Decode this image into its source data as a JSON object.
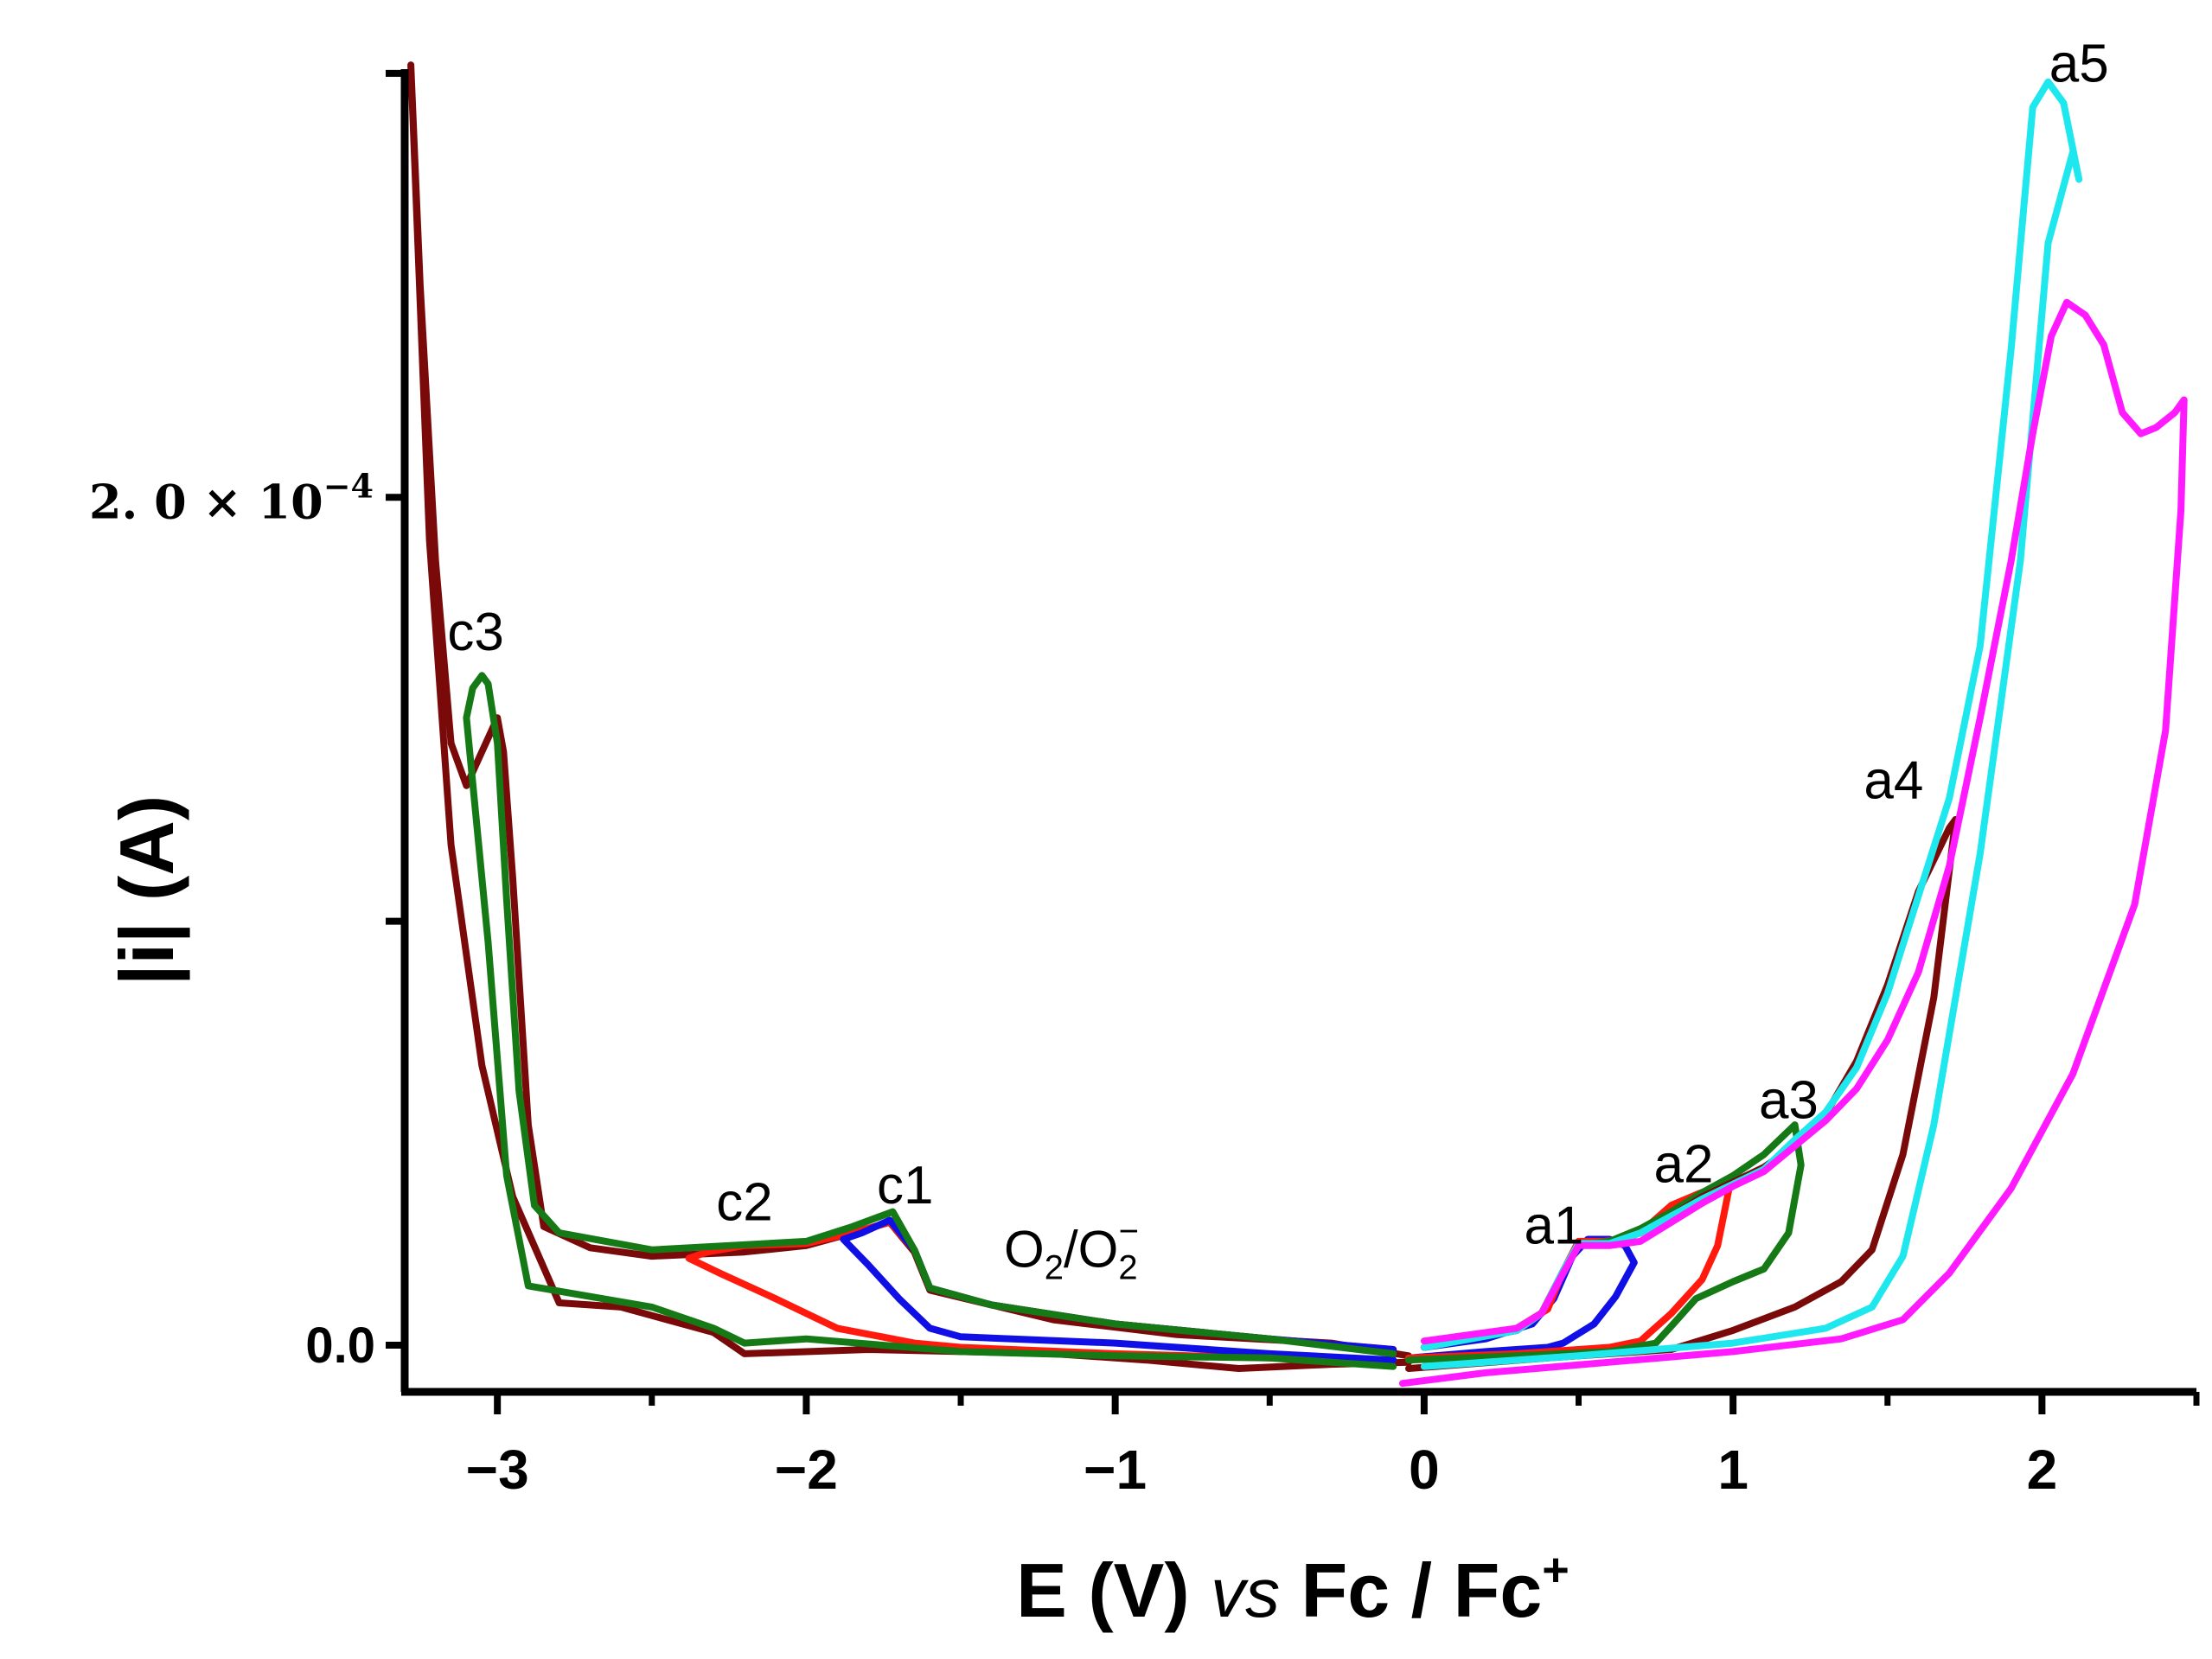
{
  "chart_data": {
    "type": "line",
    "title": "",
    "xlabel": {
      "prefix": "E (V) ",
      "italic": "vs",
      "suffix": " Fc / Fc",
      "superscript": "+"
    },
    "ylabel": "|i| (A)",
    "xlim": [
      -3.3,
      2.5
    ],
    "ylim": [
      -1.1e-05,
      0.000301
    ],
    "xticks": [
      -3,
      -2,
      -1,
      0,
      1,
      2
    ],
    "xtick_labels": [
      "−3",
      "−2",
      "−1",
      "0",
      "1",
      "2"
    ],
    "yticks": [
      0,
      0.0001,
      0.0002,
      0.0003
    ],
    "ytick_labels": {
      "zero": "0.0",
      "sci_mantissa": "2. 0 × 10",
      "sci_exponent": "−4"
    },
    "peak_labels": [
      {
        "text": "c3",
        "x": -3.07,
        "y": 0.000164
      },
      {
        "text": "c2",
        "x": -2.2,
        "y": 2.95e-05
      },
      {
        "text": "c1",
        "x": -1.68,
        "y": 3.35e-05
      },
      {
        "text": "a1",
        "x": 0.42,
        "y": 2.4e-05
      },
      {
        "text": "a2",
        "x": 0.84,
        "y": 3.85e-05
      },
      {
        "text": "a3",
        "x": 1.18,
        "y": 5.35e-05
      },
      {
        "text": "a4",
        "x": 1.52,
        "y": 0.000129
      },
      {
        "text": "a5",
        "x": 2.12,
        "y": 0.000298
      }
    ],
    "annotation": {
      "base": "O",
      "sub1": "2",
      "mid": "/O",
      "sub2": "2",
      "sup": "−",
      "x": -1.36,
      "y": 1.85e-05
    },
    "series": [
      {
        "name": "scan to -3.3 V (dark red)",
        "color": "#7a0a0a",
        "points": [
          [
            -0.05,
            -4e-06
          ],
          [
            -0.3,
            -4.5e-06
          ],
          [
            -0.6,
            -5.5e-06
          ],
          [
            -0.9,
            -3.5e-06
          ],
          [
            -1.2,
            -2e-06
          ],
          [
            -1.5,
            -1.5e-06
          ],
          [
            -1.8,
            -1e-06
          ],
          [
            -2.2,
            -2e-06
          ],
          [
            -2.3,
            3e-06
          ],
          [
            -2.6,
            9e-06
          ],
          [
            -2.8,
            1e-05
          ],
          [
            -2.95,
            3.5e-05
          ],
          [
            -3.05,
            6.6e-05
          ],
          [
            -3.15,
            0.000118
          ],
          [
            -3.22,
            0.00019
          ],
          [
            -3.28,
            0.000302
          ],
          [
            -3.25,
            0.00025
          ],
          [
            -3.2,
            0.000185
          ],
          [
            -3.15,
            0.000142
          ],
          [
            -3.1,
            0.000132
          ],
          [
            -3.05,
            0.00014
          ],
          [
            -3.0,
            0.000148
          ],
          [
            -2.98,
            0.00014
          ],
          [
            -2.95,
            0.00011
          ],
          [
            -2.9,
            5.2e-05
          ],
          [
            -2.85,
            2.8e-05
          ],
          [
            -2.7,
            2.3e-05
          ],
          [
            -2.5,
            2.1e-05
          ],
          [
            -2.2,
            2.2e-05
          ],
          [
            -2.0,
            2.35e-05
          ],
          [
            -1.85,
            2.65e-05
          ],
          [
            -1.73,
            2.9e-05
          ],
          [
            -1.65,
            2.2e-05
          ],
          [
            -1.6,
            1.3e-05
          ],
          [
            -1.4,
            9.5e-06
          ],
          [
            -1.2,
            6e-06
          ],
          [
            -0.8,
            2.5e-06
          ],
          [
            -0.3,
            5e-07
          ],
          [
            -0.05,
            -2.5e-06
          ]
        ]
      },
      {
        "name": "scan to -2.3 V (red)",
        "color": "#ff1a0d",
        "points": [
          [
            -0.1,
            -3.5e-06
          ],
          [
            -0.5,
            -3e-06
          ],
          [
            -1.0,
            -2e-06
          ],
          [
            -1.5,
            -5e-07
          ],
          [
            -1.65,
            5e-07
          ],
          [
            -1.9,
            4e-06
          ],
          [
            -2.1,
            1.1e-05
          ],
          [
            -2.28,
            1.7e-05
          ],
          [
            -2.38,
            2.05e-05
          ],
          [
            -2.32,
            2.2e-05
          ],
          [
            -2.2,
            2.35e-05
          ],
          [
            -2.0,
            2.4e-05
          ],
          [
            -1.85,
            2.65e-05
          ],
          [
            -1.73,
            2.9e-05
          ],
          [
            -1.65,
            2.25e-05
          ],
          [
            -1.6,
            1.35e-05
          ],
          [
            -1.4,
            9.5e-06
          ],
          [
            -1.0,
            5e-06
          ],
          [
            -0.5,
            1.5e-06
          ],
          [
            -0.1,
            -1e-06
          ]
        ]
      },
      {
        "name": "scan to -1.9 V (blue)",
        "color": "#1010e6",
        "points": [
          [
            -0.1,
            -3.5e-06
          ],
          [
            -0.5,
            -2e-06
          ],
          [
            -1.0,
            5e-07
          ],
          [
            -1.5,
            2e-06
          ],
          [
            -1.6,
            4e-06
          ],
          [
            -1.7,
            1.1e-05
          ],
          [
            -1.8,
            1.9e-05
          ],
          [
            -1.88,
            2.5e-05
          ],
          [
            -1.82,
            2.65e-05
          ],
          [
            -1.73,
            2.95e-05
          ],
          [
            -1.65,
            2.25e-05
          ],
          [
            -1.6,
            1.35e-05
          ],
          [
            -1.4,
            9.5e-06
          ],
          [
            -1.0,
            5e-06
          ],
          [
            -0.5,
            1.5e-06
          ],
          [
            -0.1,
            -1e-06
          ]
        ]
      },
      {
        "name": "scan to -3.1 V (green)",
        "color": "#157a15",
        "points": [
          [
            -0.1,
            -5e-06
          ],
          [
            -0.5,
            -3e-06
          ],
          [
            -1.0,
            -2.5e-06
          ],
          [
            -1.5,
            -1.5e-06
          ],
          [
            -2.0,
            1.5e-06
          ],
          [
            -2.2,
            5e-07
          ],
          [
            -2.3,
            4e-06
          ],
          [
            -2.5,
            9e-06
          ],
          [
            -2.7,
            1.15e-05
          ],
          [
            -2.9,
            1.4e-05
          ],
          [
            -2.97,
            4e-05
          ],
          [
            -3.03,
            9.5e-05
          ],
          [
            -3.1,
            0.000148
          ],
          [
            -3.08,
            0.000155
          ],
          [
            -3.05,
            0.000158
          ],
          [
            -3.03,
            0.000156
          ],
          [
            -3.0,
            0.000142
          ],
          [
            -2.97,
            0.000105
          ],
          [
            -2.93,
            6e-05
          ],
          [
            -2.88,
            3.3e-05
          ],
          [
            -2.8,
            2.65e-05
          ],
          [
            -2.5,
            2.25e-05
          ],
          [
            -2.0,
            2.45e-05
          ],
          [
            -1.85,
            2.8e-05
          ],
          [
            -1.72,
            3.15e-05
          ],
          [
            -1.65,
            2.25e-05
          ],
          [
            -1.6,
            1.35e-05
          ],
          [
            -1.4,
            9.5e-06
          ],
          [
            -1.0,
            5e-06
          ],
          [
            -0.5,
            1.5e-06
          ],
          [
            -0.1,
            -2e-06
          ]
        ]
      },
      {
        "name": "scan to 0.7 V (blue)",
        "color": "#1010e6",
        "points": [
          [
            -0.05,
            -3e-06
          ],
          [
            0.2,
            -1.5e-06
          ],
          [
            0.4,
            -5e-07
          ],
          [
            0.45,
            5e-07
          ],
          [
            0.55,
            5e-06
          ],
          [
            0.62,
            1.15e-05
          ],
          [
            0.68,
            1.95e-05
          ],
          [
            0.65,
            2.35e-05
          ],
          [
            0.6,
            2.5e-05
          ],
          [
            0.53,
            2.5e-05
          ],
          [
            0.48,
            2.1e-05
          ],
          [
            0.42,
            1.1e-05
          ],
          [
            0.35,
            5e-06
          ],
          [
            0.2,
            1.5e-06
          ],
          [
            0,
            -5e-07
          ]
        ]
      },
      {
        "name": "scan to 1.0 V (red)",
        "color": "#ff1a0d",
        "points": [
          [
            -0.05,
            -3e-06
          ],
          [
            0.3,
            -2e-06
          ],
          [
            0.6,
            -5e-07
          ],
          [
            0.7,
            1e-06
          ],
          [
            0.8,
            7.5e-06
          ],
          [
            0.9,
            1.55e-05
          ],
          [
            0.95,
            2.35e-05
          ],
          [
            0.99,
            3.8e-05
          ],
          [
            0.95,
            3.75e-05
          ],
          [
            0.88,
            3.55e-05
          ],
          [
            0.8,
            3.3e-05
          ],
          [
            0.73,
            2.85e-05
          ],
          [
            0.66,
            2.5e-05
          ],
          [
            0.58,
            2.45e-05
          ],
          [
            0.5,
            2.45e-05
          ],
          [
            0.45,
            1.75e-05
          ],
          [
            0.4,
            8.5e-06
          ],
          [
            0.3,
            4e-06
          ],
          [
            0,
            -5e-07
          ]
        ]
      },
      {
        "name": "scan to 1.2 V (green)",
        "color": "#157a15",
        "points": [
          [
            -0.05,
            -3.5e-06
          ],
          [
            0.3,
            -2.5e-06
          ],
          [
            0.6,
            -1.5e-06
          ],
          [
            0.75,
            5e-07
          ],
          [
            0.8,
            4.5e-06
          ],
          [
            0.88,
            1.1e-05
          ],
          [
            1.0,
            1.5e-05
          ],
          [
            1.1,
            1.8e-05
          ],
          [
            1.18,
            2.65e-05
          ],
          [
            1.22,
            4.25e-05
          ],
          [
            1.2,
            5.2e-05
          ],
          [
            1.1,
            4.5e-05
          ],
          [
            1.0,
            4e-05
          ],
          [
            0.9,
            3.6e-05
          ],
          [
            0.8,
            3.15e-05
          ],
          [
            0.7,
            2.75e-05
          ],
          [
            0.6,
            2.45e-05
          ],
          [
            0.5,
            2.35e-05
          ],
          [
            0.45,
            1.75e-05
          ],
          [
            0.38,
            7.5e-06
          ],
          [
            0.3,
            3.5e-06
          ],
          [
            0,
            -5e-07
          ]
        ]
      },
      {
        "name": "scan to 1.7 V (dark red)",
        "color": "#7a0a0a",
        "points": [
          [
            -0.05,
            -5.5e-06
          ],
          [
            0.4,
            -3e-06
          ],
          [
            0.8,
            -1e-06
          ],
          [
            1.0,
            3.5e-06
          ],
          [
            1.2,
            9e-06
          ],
          [
            1.35,
            1.5e-05
          ],
          [
            1.45,
            2.25e-05
          ],
          [
            1.55,
            4.5e-05
          ],
          [
            1.65,
            8.2e-05
          ],
          [
            1.72,
            0.000124
          ],
          [
            1.7,
            0.000122
          ],
          [
            1.6,
            0.000107
          ],
          [
            1.5,
            8.5e-05
          ],
          [
            1.4,
            6.7e-05
          ],
          [
            1.3,
            5.45e-05
          ],
          [
            1.2,
            4.7e-05
          ],
          [
            1.1,
            4.2e-05
          ],
          [
            1.0,
            3.85e-05
          ],
          [
            0.9,
            3.5e-05
          ],
          [
            0.8,
            3.05e-05
          ],
          [
            0.7,
            2.65e-05
          ],
          [
            0.6,
            2.4e-05
          ],
          [
            0.5,
            2.35e-05
          ],
          [
            0.45,
            1.75e-05
          ],
          [
            0.38,
            7.5e-06
          ],
          [
            0.3,
            3.5e-06
          ],
          [
            0,
            -5e-07
          ]
        ]
      },
      {
        "name": "scan to 2.1 V (cyan)",
        "color": "#1ee8ee",
        "points": [
          [
            0,
            -5e-06
          ],
          [
            0.5,
            -2.5e-06
          ],
          [
            1.0,
            5e-07
          ],
          [
            1.3,
            4e-06
          ],
          [
            1.45,
            9e-06
          ],
          [
            1.55,
            2.1e-05
          ],
          [
            1.65,
            5.2e-05
          ],
          [
            1.8,
            0.000116
          ],
          [
            1.93,
            0.000185
          ],
          [
            2.02,
            0.00026
          ],
          [
            2.1,
            0.0002815
          ],
          [
            2.12,
            0.000275
          ],
          [
            2.07,
            0.000293
          ],
          [
            2.02,
            0.000298
          ],
          [
            1.97,
            0.000292
          ],
          [
            1.9,
            0.000235
          ],
          [
            1.8,
            0.000165
          ],
          [
            1.7,
            0.000129
          ],
          [
            1.6,
            0.000106
          ],
          [
            1.5,
            8.3e-05
          ],
          [
            1.4,
            6.55e-05
          ],
          [
            1.3,
            5.5e-05
          ],
          [
            1.2,
            4.85e-05
          ],
          [
            1.1,
            4.15e-05
          ],
          [
            1.0,
            3.8e-05
          ],
          [
            0.9,
            3.45e-05
          ],
          [
            0.8,
            3.05e-05
          ],
          [
            0.7,
            2.65e-05
          ],
          [
            0.6,
            2.4e-05
          ],
          [
            0.5,
            2.4e-05
          ],
          [
            0.45,
            1.75e-05
          ],
          [
            0.38,
            7.5e-06
          ],
          [
            0.3,
            3.5e-06
          ],
          [
            0,
            -5e-07
          ]
        ]
      },
      {
        "name": "scan to 2.5 V (magenta)",
        "color": "#ff1aff",
        "points": [
          [
            -0.07,
            -9e-06
          ],
          [
            0.2,
            -6.5e-06
          ],
          [
            0.6,
            -4e-06
          ],
          [
            1.0,
            -1.5e-06
          ],
          [
            1.35,
            1.5e-06
          ],
          [
            1.55,
            6e-06
          ],
          [
            1.7,
            1.7e-05
          ],
          [
            1.9,
            3.7e-05
          ],
          [
            2.1,
            6.4e-05
          ],
          [
            2.3,
            0.000104
          ],
          [
            2.4,
            0.000145
          ],
          [
            2.45,
            0.000197
          ],
          [
            2.46,
            0.000223
          ],
          [
            2.43,
            0.00022
          ],
          [
            2.37,
            0.0002165
          ],
          [
            2.32,
            0.000215
          ],
          [
            2.26,
            0.00022
          ],
          [
            2.2,
            0.000236
          ],
          [
            2.14,
            0.000243
          ],
          [
            2.08,
            0.000246
          ],
          [
            2.03,
            0.000238
          ],
          [
            1.97,
            0.000215
          ],
          [
            1.9,
            0.000185
          ],
          [
            1.8,
            0.000148
          ],
          [
            1.7,
            0.000113
          ],
          [
            1.6,
            8.8e-05
          ],
          [
            1.5,
            7.2e-05
          ],
          [
            1.4,
            6.05e-05
          ],
          [
            1.3,
            5.3e-05
          ],
          [
            1.2,
            4.7e-05
          ],
          [
            1.1,
            4.1e-05
          ],
          [
            1.0,
            3.75e-05
          ],
          [
            0.9,
            3.35e-05
          ],
          [
            0.8,
            2.9e-05
          ],
          [
            0.7,
            2.45e-05
          ],
          [
            0.6,
            2.35e-05
          ],
          [
            0.5,
            2.35e-05
          ],
          [
            0.45,
            1.7e-05
          ],
          [
            0.38,
            7.5e-06
          ],
          [
            0.3,
            4e-06
          ],
          [
            0,
            1e-06
          ]
        ]
      }
    ]
  }
}
